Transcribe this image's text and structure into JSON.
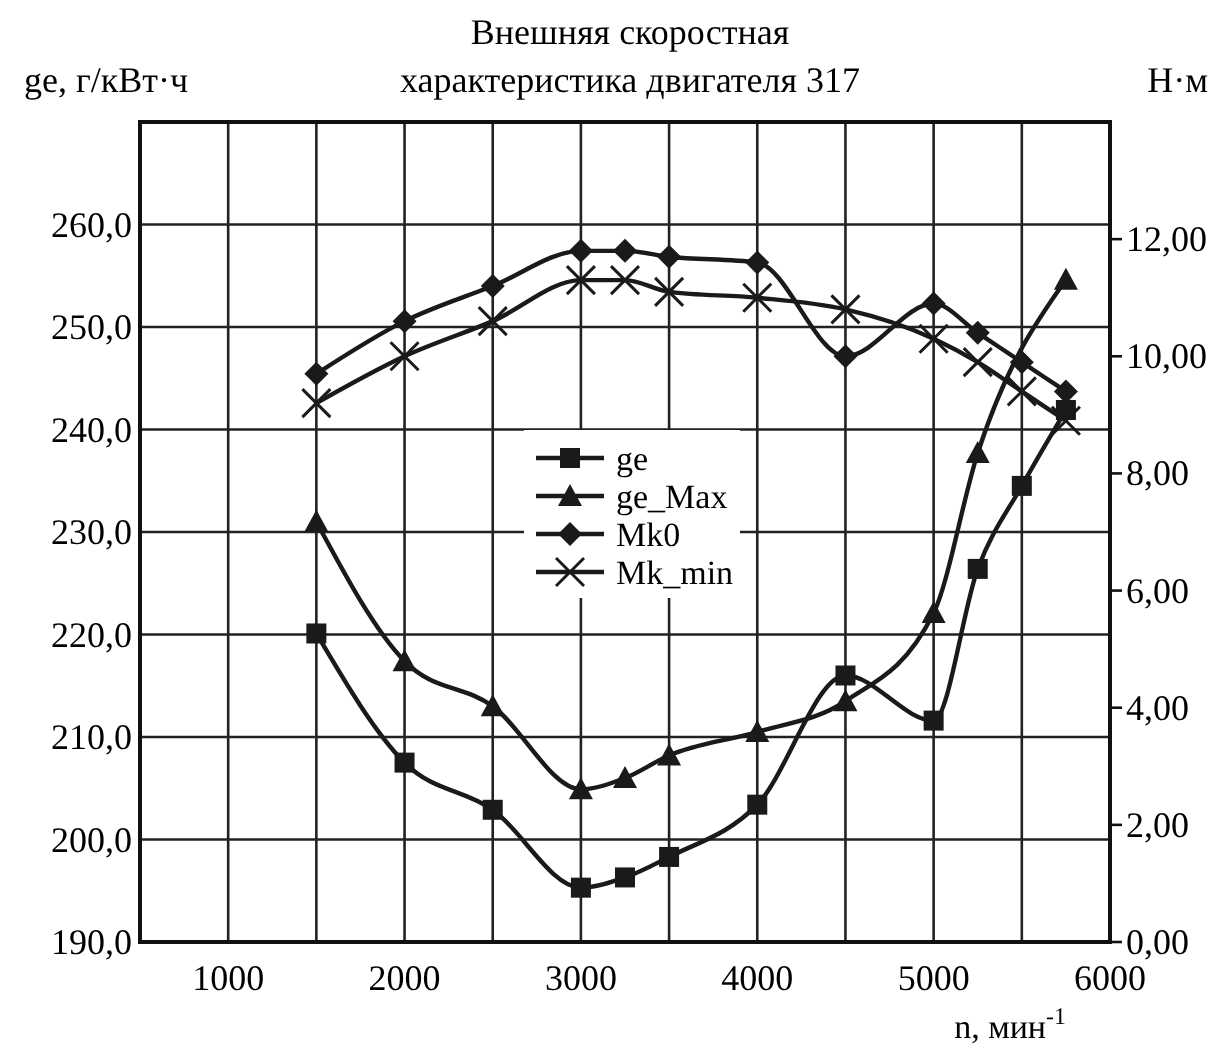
{
  "chart_data": {
    "type": "line",
    "title": "Внешняя скоростная\nхарактеристика двигателя 317",
    "xlabel": "n, мин$^{-1}$",
    "ylabel": "ge, г/кВт·ч",
    "y2label": "Н·м",
    "x": [
      1500,
      2000,
      2500,
      3000,
      3250,
      3500,
      4000,
      4500,
      5000,
      5250,
      5500,
      5750
    ],
    "series": [
      {
        "name": "ge",
        "color": "#1a1a1a",
        "marker": "square",
        "values": [
          220.1,
          207.5,
          202.9,
          195.3,
          196.3,
          198.3,
          203.4,
          216.0,
          211.6,
          226.4,
          234.5,
          241.9
        ]
      },
      {
        "name": "ge_Max",
        "color": "#1a1a1a",
        "marker": "triangle",
        "x": [
          1500,
          2000,
          2500,
          3000,
          3250,
          3500,
          4000,
          4500,
          5000,
          5250,
          5750
        ],
        "values": [
          231.0,
          217.4,
          213.0,
          204.9,
          206.0,
          208.2,
          210.5,
          213.5,
          222.1,
          237.7,
          254.6
        ]
      },
      {
        "name": "Mk0",
        "color": "#1a1a1a",
        "marker": "diamond",
        "axis": "y2",
        "values": [
          9.7,
          10.6,
          11.2,
          11.8,
          11.8,
          11.7,
          11.6,
          10.0,
          10.9,
          10.4,
          9.9,
          9.4
        ]
      },
      {
        "name": "Mk_min",
        "color": "#1a1a1a",
        "marker": "cross",
        "axis": "y2",
        "values": [
          9.2,
          10.0,
          10.6,
          11.3,
          11.3,
          11.1,
          11.0,
          10.8,
          10.3,
          9.9,
          9.4,
          8.9
        ]
      }
    ],
    "xlim": [
      500,
      6000
    ],
    "xticks": [
      1000,
      {
        "value": 1500,
        "label": null
      },
      2000,
      {
        "value": 2500,
        "label": null
      },
      3000,
      {
        "value": 3500,
        "label": null
      },
      4000,
      {
        "value": 4500,
        "label": null
      },
      5000,
      {
        "value": 5500,
        "label": null
      },
      6000
    ],
    "ylim": [
      190,
      270
    ],
    "yticks": [
      {
        "value": 190,
        "label": "190,0"
      },
      {
        "value": 200,
        "label": "200,0"
      },
      {
        "value": 210,
        "label": "210,0"
      },
      {
        "value": 220,
        "label": "220,0"
      },
      {
        "value": 230,
        "label": "230,0"
      },
      {
        "value": 240,
        "label": "240,0"
      },
      {
        "value": 250,
        "label": "250,0"
      },
      {
        "value": 260,
        "label": "260,0"
      },
      {
        "value": 270,
        "label": null
      }
    ],
    "y2lim": [
      0,
      14
    ],
    "y2ticks": [
      {
        "value": 0,
        "label": "0,00"
      },
      {
        "value": 2,
        "label": "2,00"
      },
      {
        "value": 4,
        "label": "4,00"
      },
      {
        "value": 6,
        "label": "6,00"
      },
      {
        "value": 8,
        "label": "8,00"
      },
      {
        "value": 10,
        "label": "10,00"
      },
      {
        "value": 12,
        "label": "12,00"
      }
    ],
    "grid": true,
    "legend": "center",
    "line_style": "solid"
  }
}
